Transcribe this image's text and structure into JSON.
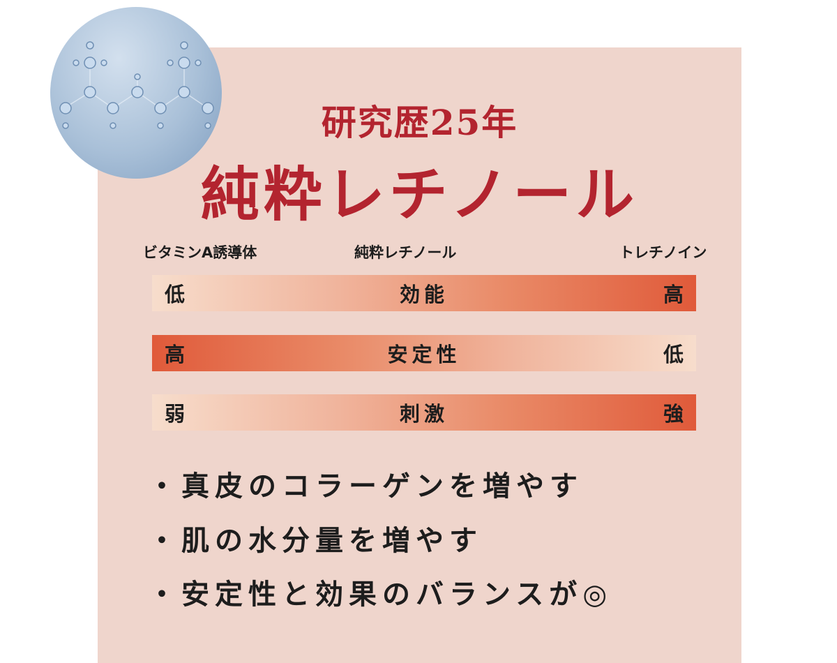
{
  "header": {
    "subtitle": "研究歴25年",
    "title": "純粋レチノール"
  },
  "image": {
    "icon": "molecule-water-icon"
  },
  "columns": [
    "ビタミンA誘導体",
    "純粋レチノール",
    "トレチノイン"
  ],
  "bars": [
    {
      "left": "低",
      "label": "効能",
      "right": "高",
      "direction": "increasing"
    },
    {
      "left": "高",
      "label": "安定性",
      "right": "低",
      "direction": "decreasing"
    },
    {
      "left": "弱",
      "label": "刺激",
      "right": "強",
      "direction": "increasing"
    }
  ],
  "bullets": [
    "・真皮のコラーゲンを増やす",
    "・肌の水分量を増やす",
    "・安定性と効果のバランスが◎"
  ],
  "colors": {
    "panel": "#efd5cc",
    "title": "#b3242f",
    "bar_dark": "#e05a3a",
    "bar_light": "#f7ddcc"
  }
}
